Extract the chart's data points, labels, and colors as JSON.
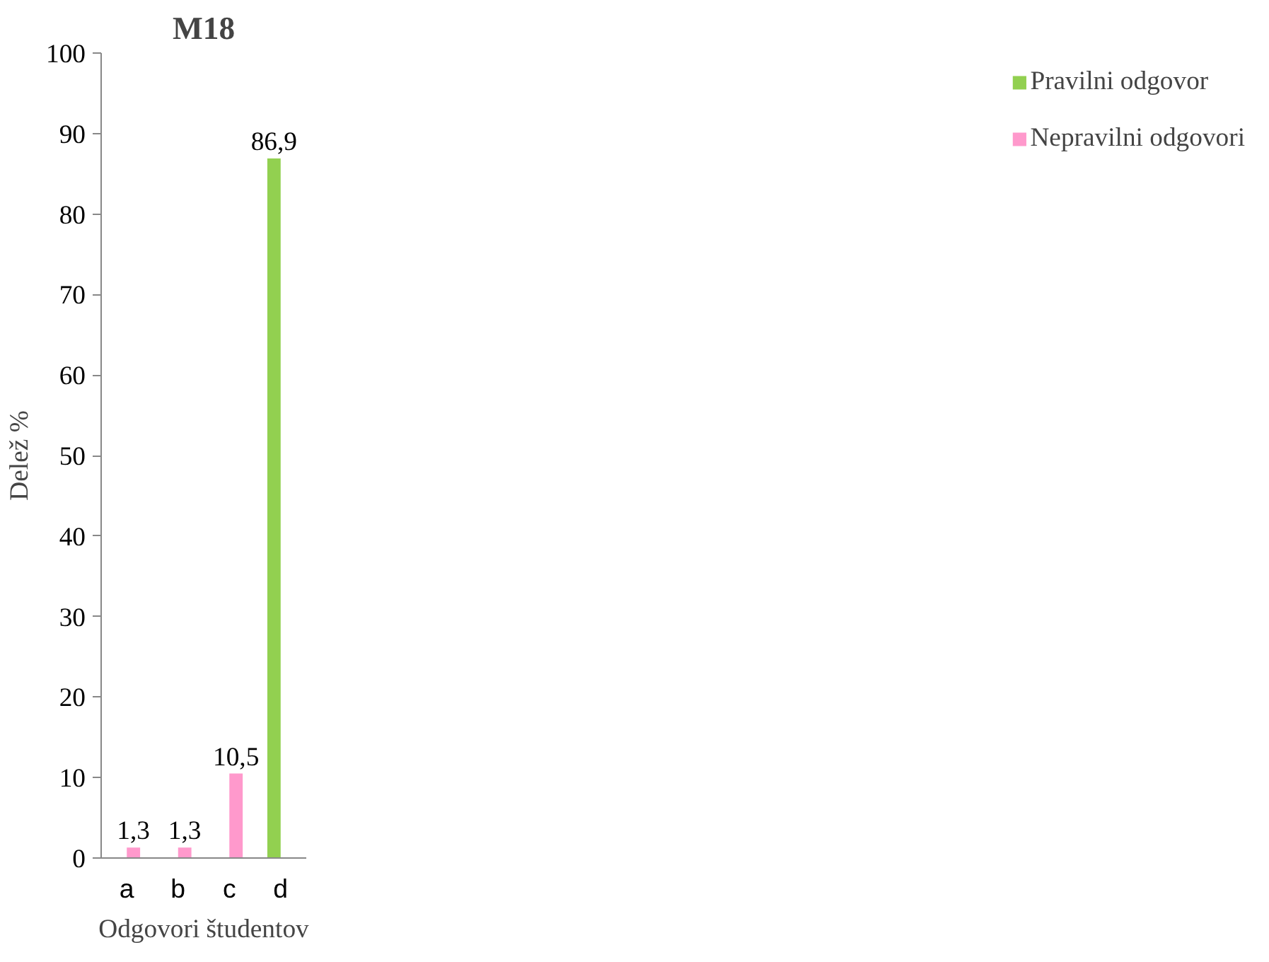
{
  "chart_data": {
    "type": "bar",
    "title": "M18",
    "xlabel": "Odgovori študentov",
    "ylabel": "Delež %",
    "categories": [
      "a",
      "b",
      "c",
      "d"
    ],
    "series": [
      {
        "name": "Pravilni odgovor",
        "color": "#92d050",
        "values": [
          null,
          null,
          null,
          86.9
        ],
        "value_labels": [
          null,
          null,
          null,
          "86,9"
        ]
      },
      {
        "name": "Nepravilni odgovori",
        "color": "#ff99cc",
        "values": [
          1.3,
          1.3,
          10.5,
          null
        ],
        "value_labels": [
          "1,3",
          "1,3",
          "10,5",
          null
        ]
      }
    ],
    "ylim": [
      0,
      100
    ],
    "yticks": [
      0,
      10,
      20,
      30,
      40,
      50,
      60,
      70,
      80,
      90,
      100
    ],
    "grid": false,
    "legend": "right"
  }
}
